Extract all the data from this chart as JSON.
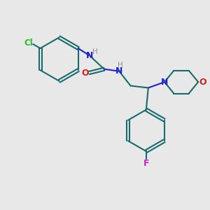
{
  "bg_color": "#e8e8e8",
  "bond_color": "#1a6b6b",
  "cl_color": "#2db82d",
  "n_color": "#2222cc",
  "o_color": "#cc2222",
  "f_color": "#cc22cc",
  "h_color": "#7a9a9a",
  "line_width": 1.5,
  "figsize": [
    3.0,
    3.0
  ],
  "dpi": 100,
  "xlim": [
    0,
    10
  ],
  "ylim": [
    0,
    10
  ]
}
